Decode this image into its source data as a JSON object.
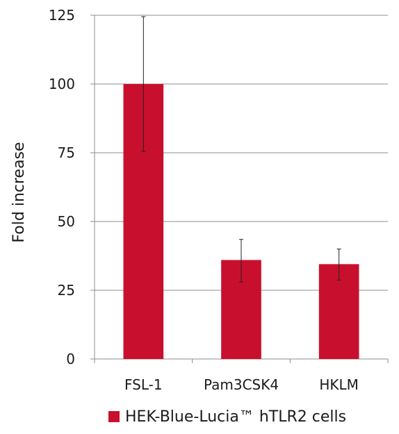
{
  "chart_data": {
    "type": "bar",
    "title": "",
    "xlabel": "",
    "ylabel": "Fold increase",
    "ylim": [
      0,
      125
    ],
    "yticks": [
      0,
      25,
      50,
      75,
      100,
      125
    ],
    "grid": true,
    "legend_position": "bottom",
    "categories": [
      "FSL-1",
      "Pam3CSK4",
      "HKLM"
    ],
    "series": [
      {
        "name": "HEK-Blue-Lucia™ hTLR2 cells",
        "color": "#c8102e",
        "values": [
          100,
          36,
          34.5
        ],
        "error_low": [
          75.5,
          28,
          28.7
        ],
        "error_high": [
          124.5,
          43.5,
          40
        ]
      }
    ]
  }
}
